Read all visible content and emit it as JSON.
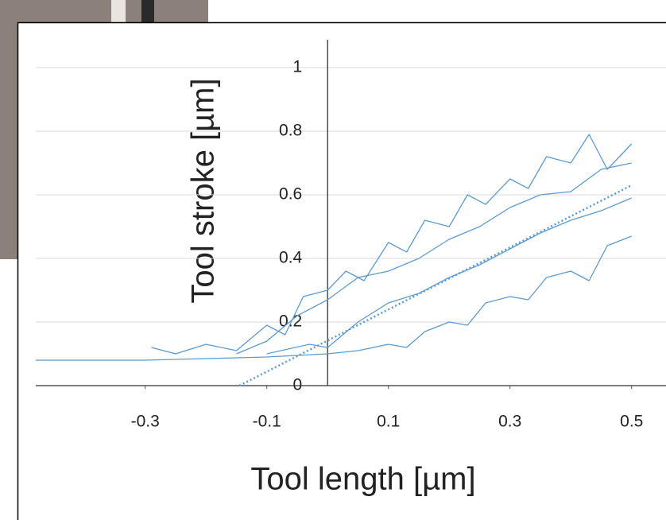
{
  "chart_data": {
    "type": "line",
    "x_label": "Tool length [µm]",
    "y_label": "Tool stroke [µm]",
    "xlim": [
      -0.48,
      0.55
    ],
    "ylim": [
      0,
      1
    ],
    "xticks": [
      -0.3,
      -0.1,
      0.1,
      0.3,
      0.5
    ],
    "yticks": [
      0,
      0.2,
      0.4,
      0.6,
      0.8,
      1
    ],
    "grid": true,
    "series": [
      {
        "color": "#5b9bd5",
        "dash": false,
        "x": [
          -0.48,
          -0.3,
          -0.2,
          -0.1,
          -0.05,
          0,
          0.05,
          0.1,
          0.13,
          0.16,
          0.2,
          0.23,
          0.26,
          0.3,
          0.33,
          0.36,
          0.4,
          0.43,
          0.46,
          0.5
        ],
        "values": [
          0.08,
          0.08,
          0.085,
          0.09,
          0.095,
          0.1,
          0.11,
          0.13,
          0.12,
          0.17,
          0.2,
          0.19,
          0.26,
          0.28,
          0.27,
          0.34,
          0.36,
          0.33,
          0.44,
          0.47
        ]
      },
      {
        "color": "#5b9bd5",
        "dash": false,
        "x": [
          -0.29,
          -0.25,
          -0.2,
          -0.15,
          -0.1,
          -0.07,
          -0.04,
          0,
          0.03,
          0.06,
          0.1,
          0.13,
          0.16,
          0.2,
          0.23,
          0.26,
          0.3,
          0.33,
          0.36,
          0.4,
          0.43,
          0.46,
          0.5
        ],
        "values": [
          0.12,
          0.1,
          0.13,
          0.11,
          0.19,
          0.16,
          0.28,
          0.3,
          0.36,
          0.33,
          0.45,
          0.42,
          0.52,
          0.5,
          0.6,
          0.57,
          0.65,
          0.62,
          0.72,
          0.7,
          0.79,
          0.68,
          0.76
        ]
      },
      {
        "color": "#5b9bd5",
        "dash": false,
        "x": [
          -0.15,
          -0.1,
          -0.05,
          0,
          0.05,
          0.1,
          0.15,
          0.2,
          0.25,
          0.3,
          0.35,
          0.4,
          0.45,
          0.5
        ],
        "values": [
          0.1,
          0.14,
          0.22,
          0.27,
          0.34,
          0.36,
          0.4,
          0.46,
          0.5,
          0.56,
          0.6,
          0.61,
          0.68,
          0.7
        ]
      },
      {
        "color": "#5b9bd5",
        "dash": false,
        "x": [
          -0.1,
          -0.03,
          0,
          0.05,
          0.1,
          0.15,
          0.2,
          0.25,
          0.3,
          0.35,
          0.4,
          0.45,
          0.5
        ],
        "values": [
          0.1,
          0.13,
          0.12,
          0.2,
          0.26,
          0.29,
          0.34,
          0.38,
          0.43,
          0.48,
          0.52,
          0.55,
          0.59
        ]
      },
      {
        "color": "#5b9bd5",
        "dash": true,
        "x": [
          -0.145,
          0.5
        ],
        "values": [
          0,
          0.63
        ]
      }
    ]
  }
}
